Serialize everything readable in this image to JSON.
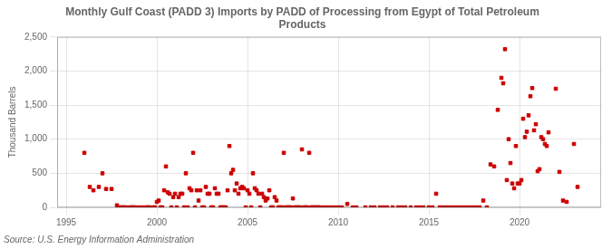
{
  "chart_data": {
    "type": "scatter",
    "title": "Monthly Gulf Coast (PADD 3) Imports by PADD of Processing from Egypt of Total Petroleum\nProducts",
    "ylabel": "Thousand Barrels",
    "annotations": [
      "Source: U.S. Energy Information Administration"
    ],
    "color": "#cc0000",
    "marker": "square",
    "grid": true,
    "xlim": [
      1994.5,
      2024.5
    ],
    "xticks": [
      1995,
      2000,
      2005,
      2010,
      2015,
      2020
    ],
    "ylim": [
      0,
      2500
    ],
    "yticks": [
      0,
      500,
      {
        "value": 1000,
        "label": "1,000"
      },
      {
        "value": 1500,
        "label": "1,500"
      },
      {
        "value": 2000,
        "label": "2,000"
      },
      {
        "value": 2500,
        "label": "2,500"
      }
    ],
    "x": [
      1996.0,
      1996.3,
      1996.5,
      1996.8,
      1997.0,
      1997.2,
      1997.5,
      1997.8,
      1998.0,
      1998.1,
      1998.2,
      1998.3,
      1998.5,
      1998.6,
      1998.7,
      1998.8,
      1999.0,
      1999.2,
      1999.4,
      1999.5,
      1999.6,
      1999.8,
      1999.9,
      2000.0,
      2000.1,
      2000.2,
      2000.3,
      2000.4,
      2000.5,
      2000.6,
      2000.7,
      2000.8,
      2000.9,
      2001.0,
      2001.1,
      2001.2,
      2001.3,
      2001.4,
      2001.5,
      2001.6,
      2001.7,
      2001.8,
      2001.9,
      2002.0,
      2002.1,
      2002.2,
      2002.3,
      2002.4,
      2002.5,
      2002.6,
      2002.7,
      2002.8,
      2002.9,
      2003.0,
      2003.1,
      2003.2,
      2003.3,
      2003.4,
      2003.5,
      2003.6,
      2003.7,
      2003.8,
      2003.9,
      2004.0,
      2004.1,
      2004.2,
      2004.3,
      2004.4,
      2004.5,
      2004.6,
      2004.7,
      2004.8,
      2004.9,
      2005.0,
      2005.1,
      2005.2,
      2005.3,
      2005.4,
      2005.5,
      2005.6,
      2005.7,
      2005.8,
      2005.9,
      2006.0,
      2006.1,
      2006.2,
      2006.3,
      2006.4,
      2006.5,
      2006.6,
      2006.7,
      2006.8,
      2006.9,
      2007.0,
      2007.1,
      2007.2,
      2007.3,
      2007.4,
      2007.5,
      2007.6,
      2007.7,
      2007.8,
      2007.9,
      2008.0,
      2008.1,
      2008.2,
      2008.3,
      2008.4,
      2008.5,
      2008.6,
      2008.7,
      2008.8,
      2008.9,
      2009.0,
      2009.2,
      2009.4,
      2009.6,
      2009.8,
      2010.0,
      2010.2,
      2010.5,
      2010.8,
      2011.0,
      2011.5,
      2011.8,
      2012.0,
      2012.3,
      2012.5,
      2012.7,
      2013.0,
      2013.3,
      2013.5,
      2013.7,
      2014.0,
      2014.3,
      2014.5,
      2014.7,
      2015.0,
      2015.2,
      2015.4,
      2015.6,
      2015.8,
      2016.0,
      2016.2,
      2016.4,
      2016.6,
      2016.8,
      2017.0,
      2017.2,
      2017.4,
      2017.6,
      2017.8,
      2018.0,
      2018.2,
      2018.4,
      2018.6,
      2018.8,
      2019.0,
      2019.1,
      2019.2,
      2019.3,
      2019.4,
      2019.5,
      2019.6,
      2019.7,
      2019.8,
      2019.9,
      2020.0,
      2020.1,
      2020.2,
      2020.3,
      2020.4,
      2020.5,
      2020.6,
      2020.7,
      2020.8,
      2020.9,
      2021.0,
      2021.1,
      2021.2,
      2021.3,
      2021.4,
      2021.5,
      2021.6,
      2022.0,
      2022.2,
      2022.4,
      2022.6,
      2023.0,
      2023.2
    ],
    "values": [
      800,
      300,
      250,
      300,
      500,
      270,
      270,
      30,
      0,
      0,
      0,
      0,
      0,
      0,
      0,
      0,
      0,
      0,
      0,
      0,
      0,
      0,
      0,
      80,
      100,
      0,
      0,
      250,
      600,
      220,
      200,
      0,
      150,
      200,
      0,
      150,
      200,
      200,
      0,
      500,
      0,
      280,
      250,
      800,
      0,
      250,
      100,
      250,
      0,
      0,
      300,
      200,
      200,
      0,
      0,
      280,
      200,
      200,
      0,
      0,
      0,
      0,
      250,
      900,
      500,
      550,
      250,
      350,
      200,
      280,
      300,
      280,
      0,
      250,
      200,
      0,
      500,
      280,
      250,
      200,
      0,
      200,
      150,
      100,
      130,
      250,
      0,
      0,
      150,
      100,
      0,
      0,
      0,
      800,
      0,
      0,
      0,
      0,
      130,
      0,
      0,
      0,
      0,
      850,
      0,
      0,
      0,
      800,
      0,
      0,
      0,
      0,
      0,
      0,
      0,
      0,
      0,
      0,
      0,
      0,
      50,
      0,
      0,
      0,
      0,
      0,
      0,
      0,
      0,
      0,
      0,
      0,
      0,
      0,
      0,
      0,
      0,
      0,
      0,
      200,
      0,
      0,
      0,
      0,
      0,
      0,
      0,
      0,
      0,
      0,
      0,
      0,
      100,
      0,
      630,
      600,
      1430,
      1900,
      1820,
      2320,
      400,
      1000,
      650,
      350,
      280,
      900,
      350,
      350,
      400,
      1300,
      1030,
      1110,
      1350,
      1630,
      1750,
      1130,
      1220,
      530,
      560,
      1030,
      1000,
      930,
      900,
      1100,
      1740,
      520,
      100,
      80,
      930,
      300
    ]
  }
}
